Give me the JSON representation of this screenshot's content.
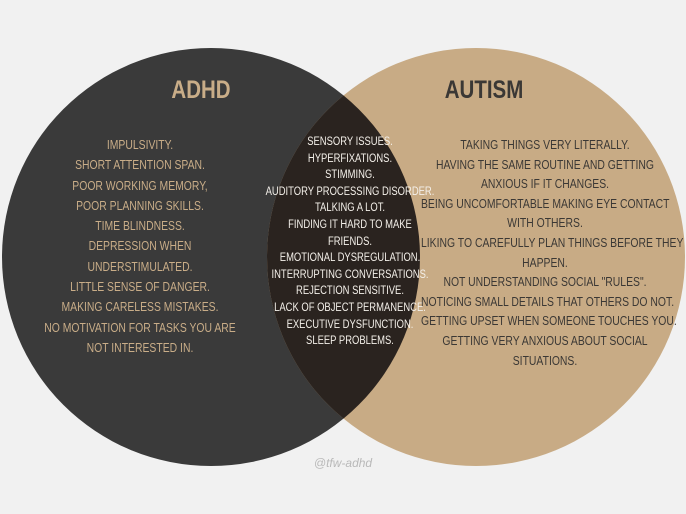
{
  "colors": {
    "background": "#f1f1f1",
    "adhd_circle": "#3a3a3a",
    "autism_circle": "#c8ab85",
    "overlap": "#2a231f",
    "adhd_text": "#c9ad88",
    "autism_text": "#3b3835",
    "overlap_text": "#f4f0ea"
  },
  "adhd": {
    "title": "ADHD",
    "items": [
      "IMPULSIVITY.",
      "SHORT ATTENTION SPAN.",
      "POOR WORKING MEMORY,",
      "POOR PLANNING SKILLS.",
      "TIME BLINDNESS.",
      "DEPRESSION WHEN",
      "UNDERSTIMULATED.",
      "LITTLE SENSE OF DANGER.",
      "MAKING CARELESS MISTAKES.",
      "NO MOTIVATION FOR TASKS YOU ARE",
      "NOT INTERESTED IN."
    ]
  },
  "autism": {
    "title": "AUTISM",
    "items": [
      "TAKING THINGS VERY LITERALLY.",
      "HAVING THE SAME ROUTINE AND GETTING",
      "ANXIOUS IF IT CHANGES.",
      "BEING UNCOMFORTABLE MAKING EYE CONTACT",
      "WITH OTHERS.",
      "LIKING TO CAREFULLY PLAN THINGS BEFORE THEY",
      "HAPPEN.",
      "NOT UNDERSTANDING SOCIAL \"RULES\".",
      "NOTICING SMALL DETAILS THAT OTHERS DO NOT.",
      "GETTING UPSET WHEN SOMEONE TOUCHES YOU.",
      "GETTING VERY ANXIOUS ABOUT SOCIAL",
      "SITUATIONS."
    ]
  },
  "both": {
    "items": [
      "SENSORY ISSUES.",
      "HYPERFIXATIONS.",
      "STIMMING.",
      "AUDITORY PROCESSING DISORDER.",
      "TALKING A LOT.",
      "FINDING IT HARD TO MAKE",
      "FRIENDS.",
      "EMOTIONAL DYSREGULATION.",
      "INTERRUPTING CONVERSATIONS.",
      "REJECTION SENSITIVE.",
      "LACK OF OBJECT PERMANENCE.",
      "EXECUTIVE DYSFUNCTION.",
      "SLEEP PROBLEMS."
    ]
  },
  "credit": "@tfw-adhd"
}
